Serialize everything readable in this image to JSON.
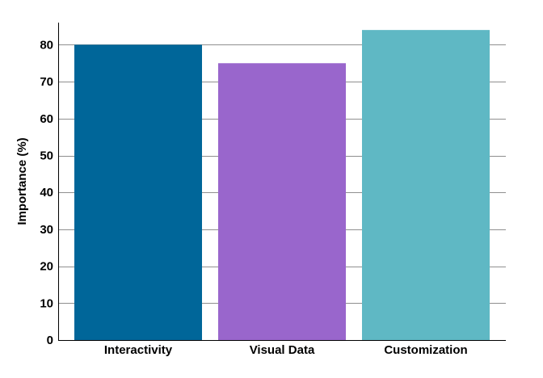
{
  "chart_data": {
    "type": "bar",
    "categories": [
      "Interactivity",
      "Visual Data",
      "Customization"
    ],
    "values": [
      80,
      75,
      84
    ],
    "colors": [
      "#006699",
      "#9966cc",
      "#5fb8c4"
    ],
    "title": "",
    "xlabel": "",
    "ylabel": "Importance (%)",
    "ylim": [
      0,
      86
    ],
    "yticks": [
      0,
      10,
      20,
      30,
      40,
      50,
      60,
      70,
      80
    ],
    "grid": true,
    "legend": "none"
  }
}
